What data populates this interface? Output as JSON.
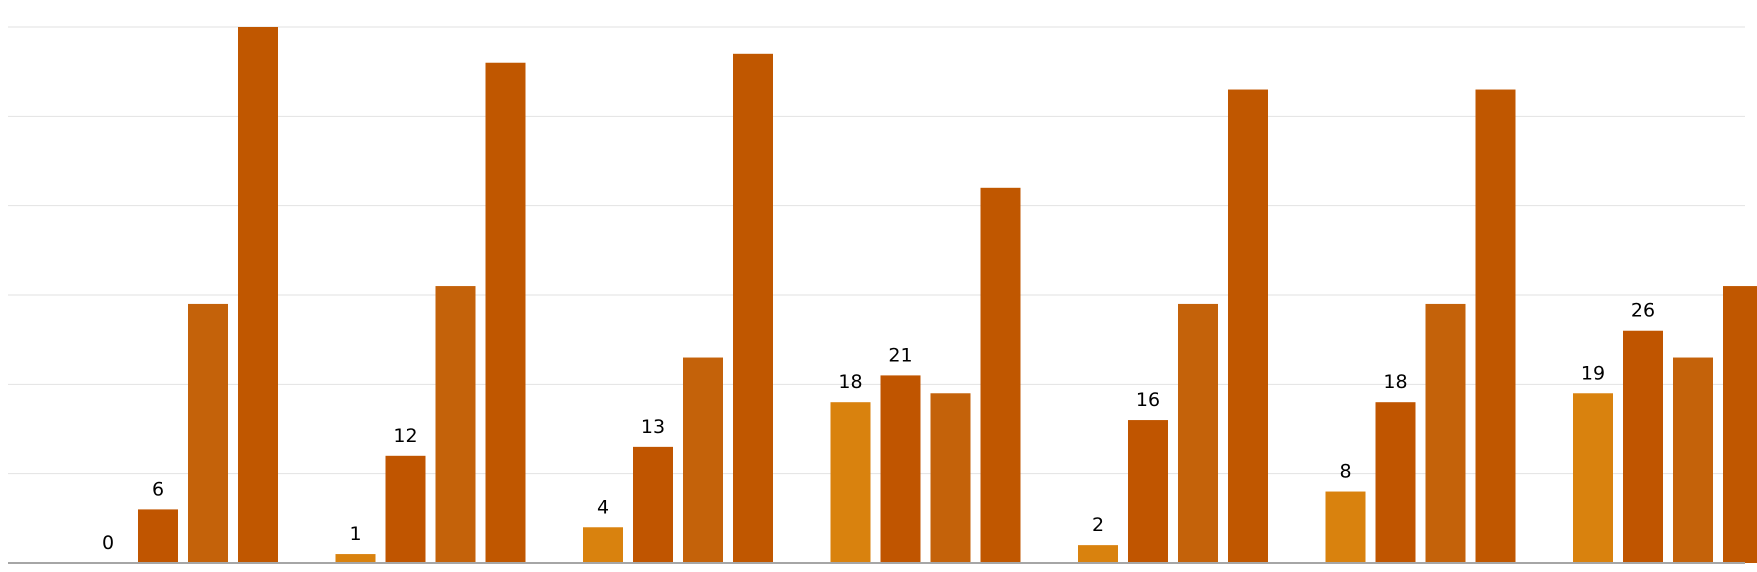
{
  "chart_data": {
    "type": "bar",
    "title": "",
    "xlabel": "",
    "ylabel": "",
    "ylim": [
      0,
      60
    ],
    "grid": true,
    "legend": "none",
    "categories": [
      "",
      "",
      "",
      "",
      "",
      "",
      ""
    ],
    "series": [
      {
        "color": "#d9820e",
        "values": [
          0,
          1,
          4,
          18,
          2,
          8,
          19
        ],
        "labels": [
          "0",
          "1",
          "4",
          "18",
          "2",
          "8",
          "19"
        ]
      },
      {
        "color": "#c05500",
        "values": [
          6,
          12,
          13,
          21,
          16,
          18,
          26
        ],
        "labels": [
          "6",
          "12",
          "13",
          "21",
          "16",
          "18",
          "26"
        ]
      },
      {
        "color": "#c4620a",
        "values": [
          29,
          31,
          23,
          19,
          29,
          29,
          23
        ],
        "labels": []
      },
      {
        "color": "#c05700",
        "values": [
          60,
          56,
          57,
          42,
          53,
          53,
          31
        ],
        "labels": []
      }
    ]
  }
}
